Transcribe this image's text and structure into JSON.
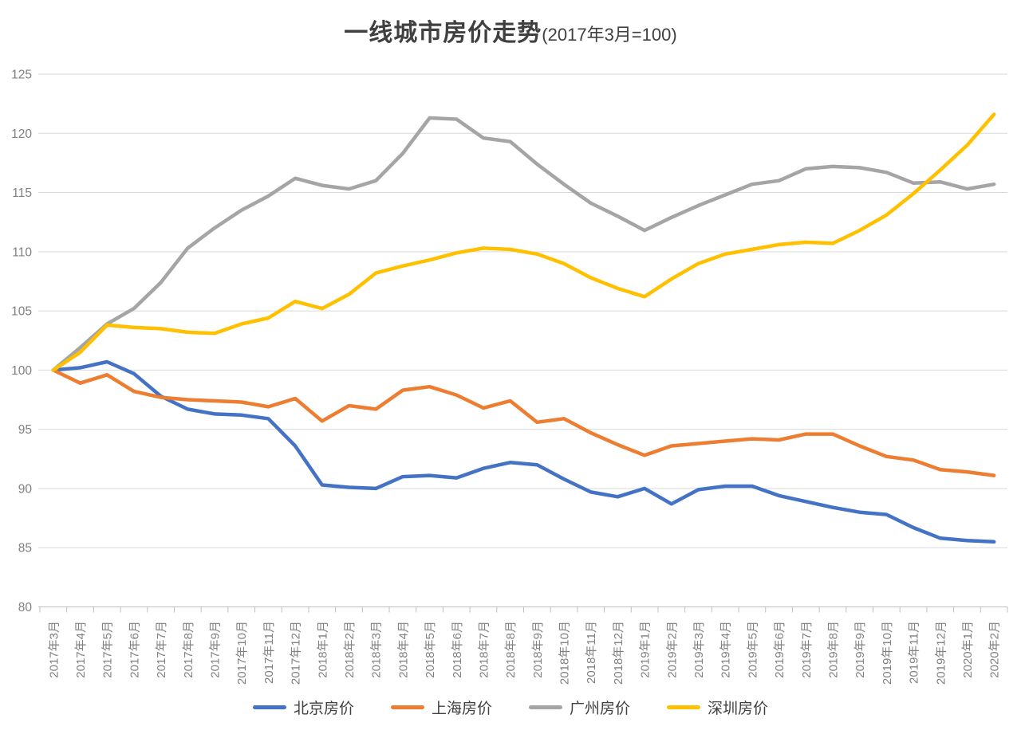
{
  "chart_data": {
    "type": "line",
    "title": "一线城市房价走势",
    "title_suffix": "(2017年3月=100)",
    "x": [
      "2017年3月",
      "2017年4月",
      "2017年5月",
      "2017年6月",
      "2017年7月",
      "2017年8月",
      "2017年9月",
      "2017年10月",
      "2017年11月",
      "2017年12月",
      "2018年1月",
      "2018年2月",
      "2018年3月",
      "2018年4月",
      "2018年5月",
      "2018年6月",
      "2018年7月",
      "2018年8月",
      "2018年9月",
      "2018年10月",
      "2018年11月",
      "2018年12月",
      "2019年1月",
      "2019年2月",
      "2019年3月",
      "2019年4月",
      "2019年5月",
      "2019年6月",
      "2019年7月",
      "2019年8月",
      "2019年9月",
      "2019年10月",
      "2019年11月",
      "2019年12月",
      "2020年1月",
      "2020年2月"
    ],
    "series": [
      {
        "key": "beijing",
        "name": "北京房价",
        "color": "#4472C4",
        "values": [
          100,
          100.2,
          100.7,
          99.7,
          97.8,
          96.7,
          96.3,
          96.2,
          95.9,
          93.6,
          90.3,
          90.1,
          90.0,
          91.0,
          91.1,
          90.9,
          91.7,
          92.2,
          92.0,
          90.8,
          89.7,
          89.3,
          90.0,
          88.7,
          89.9,
          90.2,
          90.2,
          89.4,
          88.9,
          88.4,
          88.0,
          87.8,
          86.7,
          85.8,
          85.6,
          85.5
        ]
      },
      {
        "key": "shanghai",
        "name": "上海房价",
        "color": "#ED7D31",
        "values": [
          100,
          98.9,
          99.6,
          98.2,
          97.7,
          97.5,
          97.4,
          97.3,
          96.9,
          97.6,
          95.7,
          97.0,
          96.7,
          98.3,
          98.6,
          97.9,
          96.8,
          97.4,
          95.6,
          95.9,
          94.7,
          93.7,
          92.8,
          93.6,
          93.8,
          94.0,
          94.2,
          94.1,
          94.6,
          94.6,
          93.6,
          92.7,
          92.4,
          91.6,
          91.4,
          91.1
        ]
      },
      {
        "key": "guangzhou",
        "name": "广州房价",
        "color": "#A5A5A5",
        "values": [
          100,
          101.9,
          103.9,
          105.2,
          107.4,
          110.3,
          112.0,
          113.5,
          114.7,
          116.2,
          115.6,
          115.3,
          116.0,
          118.3,
          121.3,
          121.2,
          119.6,
          119.3,
          117.4,
          115.7,
          114.1,
          113.0,
          111.8,
          112.9,
          113.9,
          114.8,
          115.7,
          116.0,
          117.0,
          117.2,
          117.1,
          116.7,
          115.8,
          115.9,
          115.3,
          115.7
        ]
      },
      {
        "key": "shenzhen",
        "name": "深圳房价",
        "color": "#FFC000",
        "values": [
          100,
          101.5,
          103.8,
          103.6,
          103.5,
          103.2,
          103.1,
          103.9,
          104.4,
          105.8,
          105.2,
          106.4,
          108.2,
          108.8,
          109.3,
          109.9,
          110.3,
          110.2,
          109.8,
          109.0,
          107.8,
          106.9,
          106.2,
          107.7,
          109.0,
          109.8,
          110.2,
          110.6,
          110.8,
          110.7,
          111.8,
          113.1,
          114.9,
          116.9,
          119.0,
          121.6
        ]
      }
    ],
    "ylim": [
      80,
      125
    ],
    "y_tick_step": 5,
    "y_tick_labels": [
      "80",
      "85",
      "90",
      "95",
      "100",
      "105",
      "110",
      "115",
      "120",
      "125"
    ],
    "grid": "horizontal",
    "legend_position": "bottom",
    "colors": {
      "grid_line": "#D9D9D9",
      "axis_line": "#BFBFBF",
      "tick_label": "#808080",
      "title_text": "#404040",
      "legend_text": "#404040",
      "background": "#FFFFFF"
    }
  }
}
